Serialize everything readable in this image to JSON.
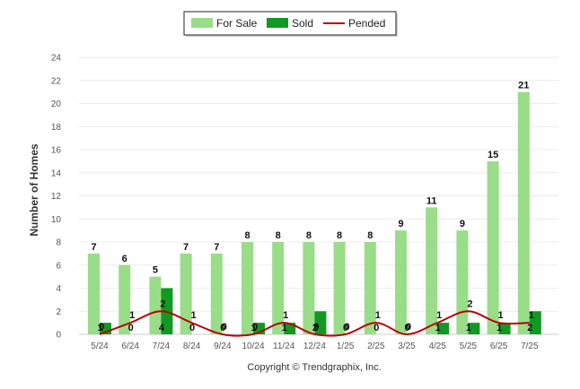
{
  "chart_data": {
    "type": "bar",
    "categories": [
      "5/24",
      "6/24",
      "7/24",
      "8/24",
      "9/24",
      "10/24",
      "11/24",
      "12/24",
      "1/25",
      "2/25",
      "3/25",
      "4/25",
      "5/25",
      "6/25",
      "7/25"
    ],
    "series": [
      {
        "name": "For Sale",
        "type": "bar",
        "color": "#99dd88",
        "values": [
          7,
          6,
          5,
          7,
          7,
          8,
          8,
          8,
          8,
          8,
          9,
          11,
          9,
          15,
          21
        ]
      },
      {
        "name": "Sold",
        "type": "bar",
        "color": "#119922",
        "values": [
          1,
          0,
          4,
          0,
          0,
          1,
          1,
          2,
          0,
          0,
          0,
          1,
          1,
          1,
          2
        ]
      },
      {
        "name": "Pended",
        "type": "line",
        "color": "#bb0000",
        "values": [
          0,
          1,
          2,
          1,
          0,
          0,
          1,
          0,
          0,
          1,
          0,
          1,
          2,
          1,
          1
        ]
      }
    ],
    "xlabel": "",
    "ylabel": "Number of Homes",
    "ylim": [
      0,
      24
    ],
    "yticks": [
      0,
      2,
      4,
      6,
      8,
      10,
      12,
      14,
      16,
      18,
      20,
      22,
      24
    ],
    "grid": true,
    "legend": "top-center",
    "credit": "Copyright © Trendgraphix, Inc."
  }
}
